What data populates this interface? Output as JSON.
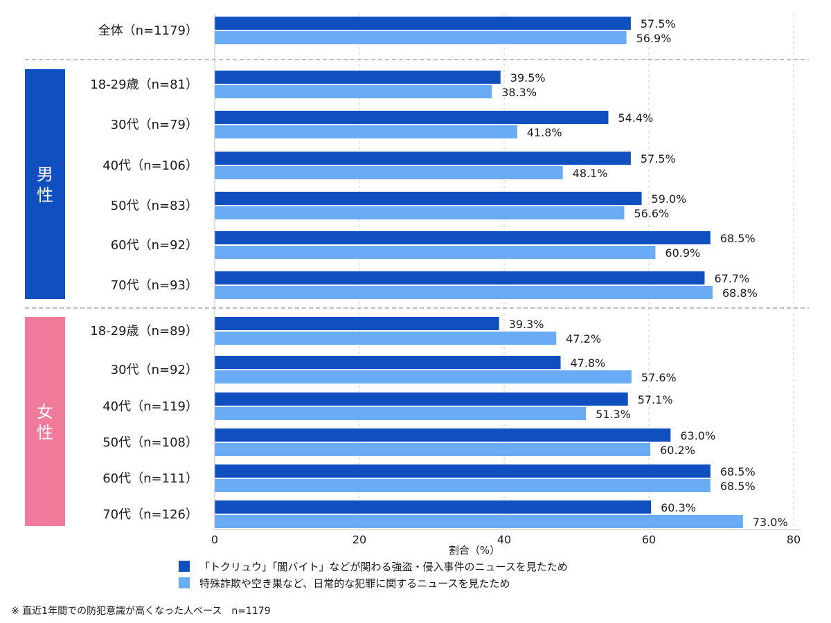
{
  "chart_data": {
    "type": "bar",
    "orientation": "horizontal",
    "xlabel": "割合（%）",
    "xlim": [
      0,
      80
    ],
    "xticks": [
      0,
      20,
      40,
      60,
      80
    ],
    "grid": true,
    "legend_position": "bottom",
    "groups": [
      {
        "name": "",
        "color": "",
        "categories": [
          "全体（n=1179）"
        ]
      },
      {
        "name": "男性",
        "color": "#0f4fbf",
        "categories": [
          "18-29歳（n=81）",
          "30代（n=79）",
          "40代（n=106）",
          "50代（n=83）",
          "60代（n=92）",
          "70代（n=93）"
        ]
      },
      {
        "name": "女性",
        "color": "#f07a99",
        "categories": [
          "18-29歳（n=89）",
          "30代（n=92）",
          "40代（n=119）",
          "50代（n=108）",
          "60代（n=111）",
          "70代（n=126）"
        ]
      }
    ],
    "categories": [
      "全体（n=1179）",
      "18-29歳（n=81）",
      "30代（n=79）",
      "40代（n=106）",
      "50代（n=83）",
      "60代（n=92）",
      "70代（n=93）",
      "18-29歳（n=89）",
      "30代（n=92）",
      "40代（n=119）",
      "50代（n=108）",
      "60代（n=111）",
      "70代（n=126）"
    ],
    "series": [
      {
        "name": "「トクリュウ」「闇バイト」などが関わる強盗・侵入事件のニュースを見たため",
        "color": "#0f4fbf",
        "values": [
          57.5,
          39.5,
          54.4,
          57.5,
          59.0,
          68.5,
          67.7,
          39.3,
          47.8,
          57.1,
          63.0,
          68.5,
          60.3
        ],
        "labels": [
          "57.5%",
          "39.5%",
          "54.4%",
          "57.5%",
          "59.0%",
          "68.5%",
          "67.7%",
          "39.3%",
          "47.8%",
          "57.1%",
          "63.0%",
          "68.5%",
          "60.3%"
        ]
      },
      {
        "name": "特殊詐欺や空き巣など、日常的な犯罪に関するニュースを見たため",
        "color": "#6aabf5",
        "values": [
          56.9,
          38.3,
          41.8,
          48.1,
          56.6,
          60.9,
          68.8,
          47.2,
          57.6,
          51.3,
          60.2,
          68.5,
          73.0
        ],
        "labels": [
          "56.9%",
          "38.3%",
          "41.8%",
          "48.1%",
          "56.6%",
          "60.9%",
          "68.8%",
          "47.2%",
          "57.6%",
          "51.3%",
          "60.2%",
          "68.5%",
          "73.0%"
        ]
      }
    ]
  },
  "footnote": "※ 直近1年間での防犯意識が高くなった人ベース　n=1179"
}
